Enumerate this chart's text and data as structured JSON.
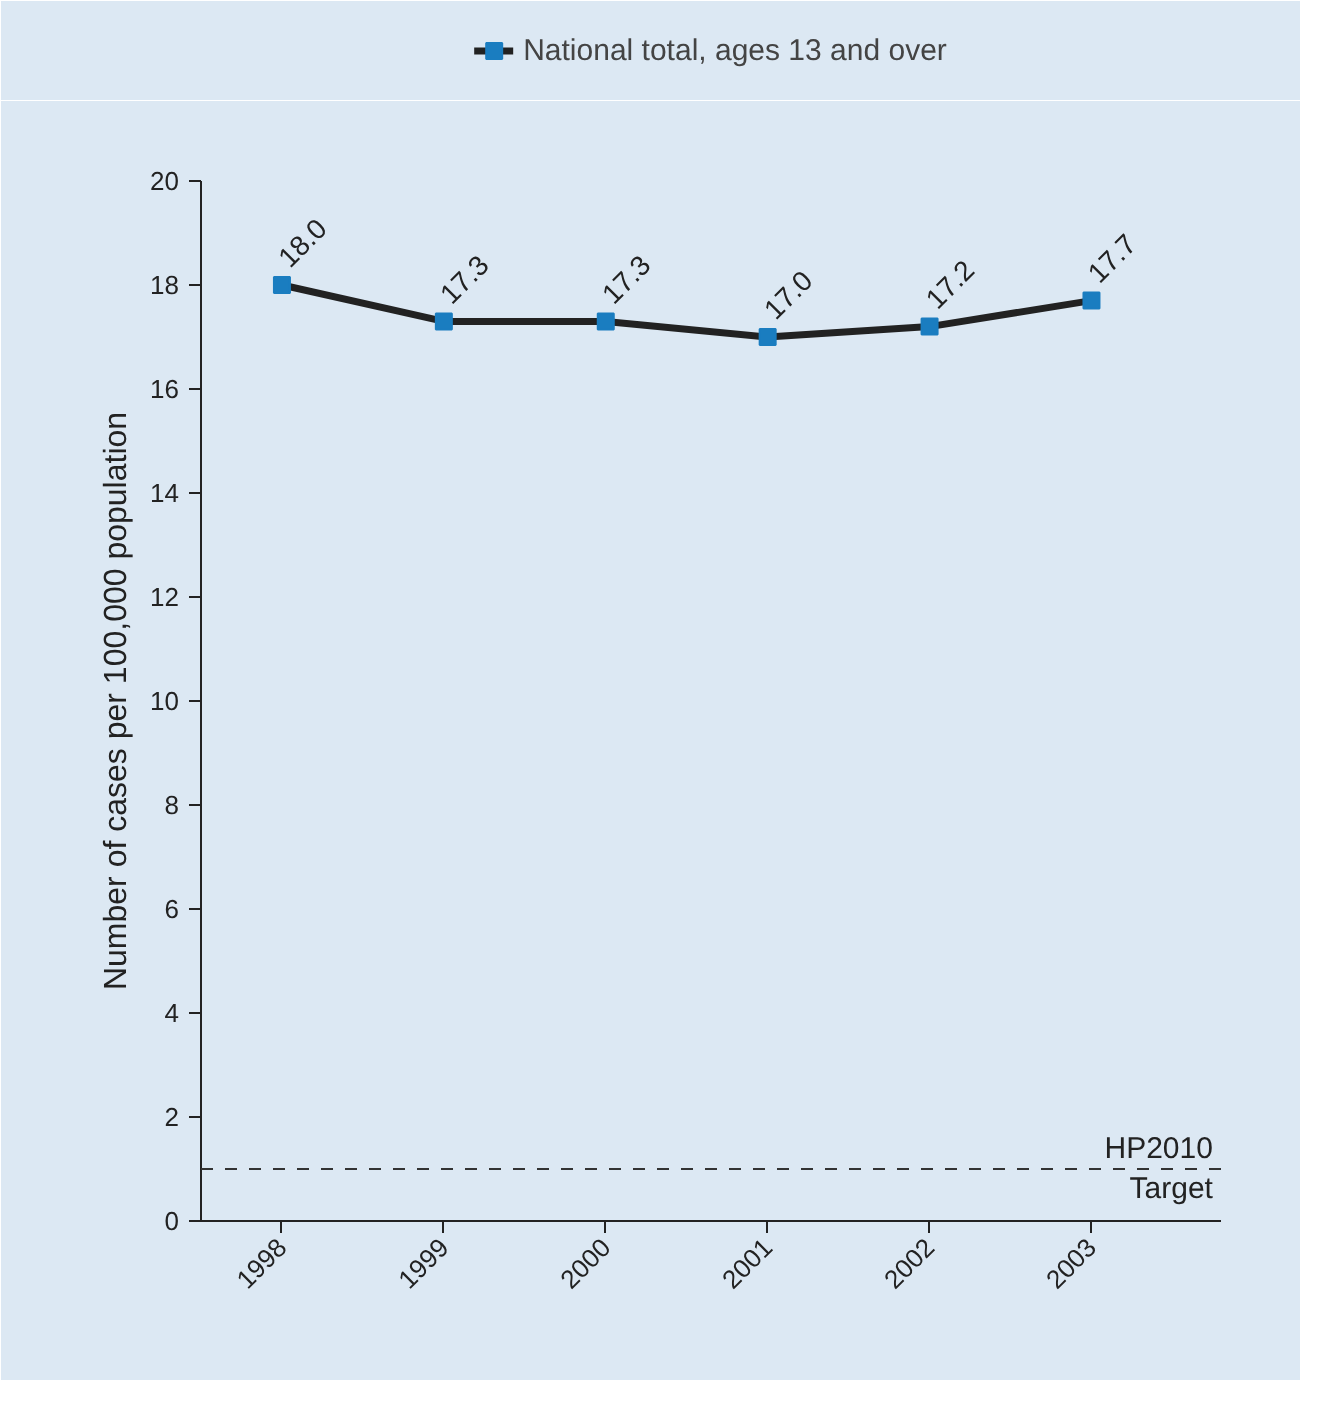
{
  "chart_data": {
    "type": "line",
    "ylabel": "Number of cases per 100,000 population",
    "categories": [
      "1998",
      "1999",
      "2000",
      "2001",
      "2002",
      "2003"
    ],
    "series": [
      {
        "name": "National total, ages 13 and over",
        "color": "#1a7dc0",
        "values": [
          18.0,
          17.3,
          17.3,
          17.0,
          17.2,
          17.7
        ]
      }
    ],
    "ylim": [
      0,
      20
    ],
    "yticks": [
      0,
      2,
      4,
      6,
      8,
      10,
      12,
      14,
      16,
      18,
      20
    ],
    "ref_lines": [
      {
        "axis": "y",
        "value": 1,
        "label": "HP2010\nTarget",
        "line_style": "dashed",
        "color": "#333333"
      }
    ],
    "value_labels": [
      "18.0",
      "17.3",
      "17.3",
      "17.0",
      "17.2",
      "17.7"
    ],
    "legend": "top",
    "marker": "square",
    "grid": false
  }
}
